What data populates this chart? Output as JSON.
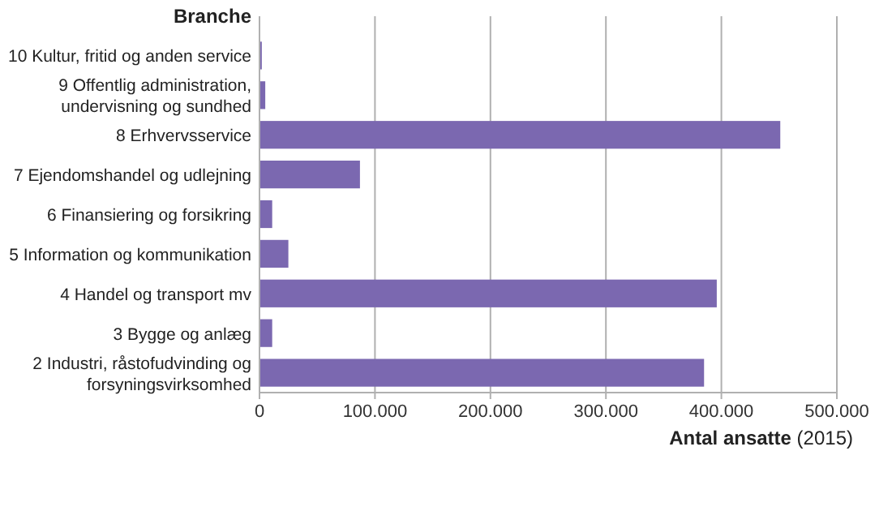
{
  "chart_data": {
    "type": "bar",
    "orientation": "horizontal",
    "ylabel": "Branche",
    "xlabel": "Antal ansatte (2015)",
    "categories": [
      "10 Kultur, fritid og anden service",
      "9 Offentlig administration, undervisning og sundhed",
      "8 Erhvervsservice",
      "7 Ejendomshandel og udlejning",
      "6 Finansiering og forsikring",
      "5 Information og kommunikation",
      "4 Handel og transport mv",
      "3 Bygge og anlæg",
      "2 Industri, råstofudvinding og forsyningsvirksomhed"
    ],
    "values": [
      2000,
      5000,
      451000,
      87000,
      11000,
      25000,
      396000,
      11000,
      385000
    ],
    "color": "#7b68b0",
    "xlim": [
      0,
      500000
    ],
    "xticks": [
      {
        "value": 0,
        "label": "0"
      },
      {
        "value": 100000,
        "label": "100.000"
      },
      {
        "value": 200000,
        "label": "200.000"
      },
      {
        "value": 300000,
        "label": "300.000"
      },
      {
        "value": 400000,
        "label": "400.000"
      },
      {
        "value": 500000,
        "label": "500.000"
      }
    ],
    "grid": "x"
  }
}
